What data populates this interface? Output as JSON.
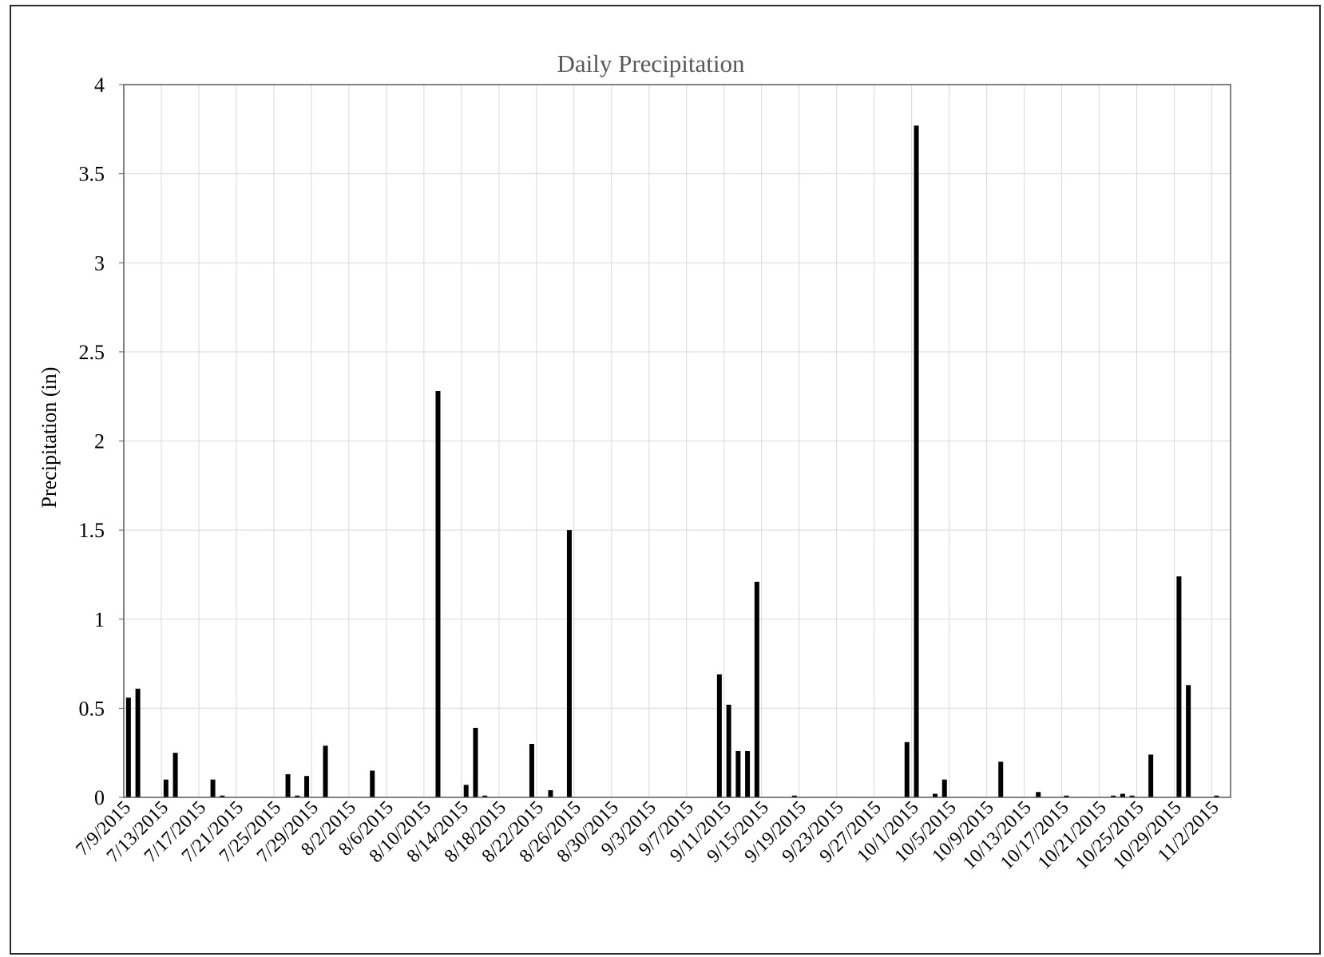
{
  "chart_data": {
    "type": "bar",
    "title": "Daily Precipitation",
    "xlabel": "",
    "ylabel": "Precipitation (in)",
    "ylim": [
      0,
      4
    ],
    "yticks": [
      "0",
      "0.5",
      "1",
      "1.5",
      "2",
      "2.5",
      "3",
      "3.5",
      "4"
    ],
    "x_start": "7/9/2015",
    "x_end": "11/3/2015",
    "x_tick_labels": [
      "7/9/2015",
      "7/13/2015",
      "7/17/2015",
      "7/21/2015",
      "7/25/2015",
      "7/29/2015",
      "8/2/2015",
      "8/6/2015",
      "8/10/2015",
      "8/14/2015",
      "8/18/2015",
      "8/22/2015",
      "8/26/2015",
      "8/30/2015",
      "9/3/2015",
      "9/7/2015",
      "9/11/2015",
      "9/15/2015",
      "9/19/2015",
      "9/23/2015",
      "9/27/2015",
      "10/1/2015",
      "10/5/2015",
      "10/9/2015",
      "10/13/2015",
      "10/17/2015",
      "10/21/2015",
      "10/25/2015",
      "10/29/2015",
      "11/2/2015"
    ],
    "grid": true,
    "bar_color": "#000000",
    "grid_color": "#d9d9d9",
    "points": [
      {
        "date": "7/9/2015",
        "value": 0.56
      },
      {
        "date": "7/10/2015",
        "value": 0.61
      },
      {
        "date": "7/13/2015",
        "value": 0.1
      },
      {
        "date": "7/14/2015",
        "value": 0.25
      },
      {
        "date": "7/18/2015",
        "value": 0.1
      },
      {
        "date": "7/19/2015",
        "value": 0.01
      },
      {
        "date": "7/26/2015",
        "value": 0.13
      },
      {
        "date": "7/27/2015",
        "value": 0.01
      },
      {
        "date": "7/28/2015",
        "value": 0.12
      },
      {
        "date": "7/30/2015",
        "value": 0.29
      },
      {
        "date": "8/4/2015",
        "value": 0.15
      },
      {
        "date": "8/11/2015",
        "value": 2.28
      },
      {
        "date": "8/14/2015",
        "value": 0.07
      },
      {
        "date": "8/15/2015",
        "value": 0.39
      },
      {
        "date": "8/16/2015",
        "value": 0.01
      },
      {
        "date": "8/21/2015",
        "value": 0.3
      },
      {
        "date": "8/23/2015",
        "value": 0.04
      },
      {
        "date": "8/25/2015",
        "value": 1.5
      },
      {
        "date": "9/10/2015",
        "value": 0.69
      },
      {
        "date": "9/11/2015",
        "value": 0.52
      },
      {
        "date": "9/12/2015",
        "value": 0.26
      },
      {
        "date": "9/13/2015",
        "value": 0.26
      },
      {
        "date": "9/14/2015",
        "value": 1.21
      },
      {
        "date": "9/18/2015",
        "value": 0.01
      },
      {
        "date": "9/30/2015",
        "value": 0.31
      },
      {
        "date": "10/1/2015",
        "value": 3.77
      },
      {
        "date": "10/3/2015",
        "value": 0.02
      },
      {
        "date": "10/4/2015",
        "value": 0.1
      },
      {
        "date": "10/10/2015",
        "value": 0.2
      },
      {
        "date": "10/14/2015",
        "value": 0.03
      },
      {
        "date": "10/17/2015",
        "value": 0.01
      },
      {
        "date": "10/22/2015",
        "value": 0.01
      },
      {
        "date": "10/23/2015",
        "value": 0.02
      },
      {
        "date": "10/24/2015",
        "value": 0.01
      },
      {
        "date": "10/26/2015",
        "value": 0.24
      },
      {
        "date": "10/29/2015",
        "value": 1.24
      },
      {
        "date": "10/30/2015",
        "value": 0.63
      },
      {
        "date": "11/2/2015",
        "value": 0.01
      }
    ]
  }
}
